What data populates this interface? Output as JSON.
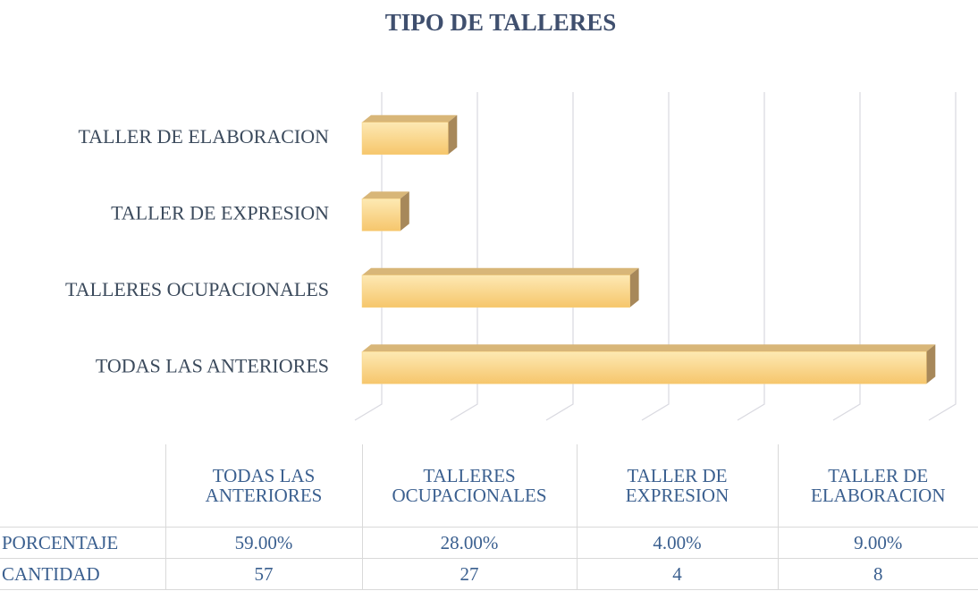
{
  "chart_data": {
    "type": "bar",
    "orientation": "horizontal",
    "title": "TIPO DE TALLERES",
    "categories": [
      "TODAS LAS ANTERIORES",
      "TALLERES OCUPACIONALES",
      "TALLER DE EXPRESION",
      "TALLER DE ELABORACION"
    ],
    "series": [
      {
        "name": "PORCENTAJE",
        "color": "#f9d27f",
        "values": [
          59,
          28,
          4,
          9
        ],
        "value_labels": [
          "59.00%",
          "28.00%",
          "4.00%",
          "9.00%"
        ]
      },
      {
        "name": "CANTIDAD",
        "values": [
          57,
          27,
          4,
          8
        ]
      }
    ],
    "xlim": [
      0,
      60
    ],
    "xticks": [
      0,
      10,
      20,
      30,
      40,
      50,
      60
    ],
    "grid": true
  }
}
